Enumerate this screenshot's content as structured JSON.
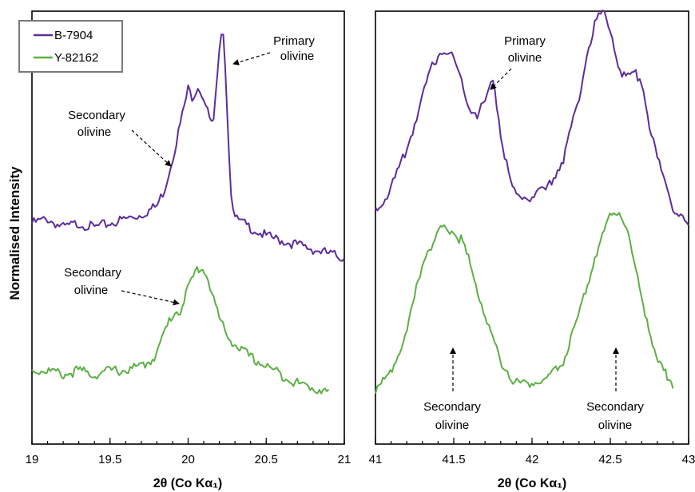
{
  "chart_data": [
    {
      "type": "line",
      "panel": "left",
      "xlabel": "2θ (Co Kα₁)",
      "ylabel": "Normalised Intensity",
      "xlim": [
        19,
        21
      ],
      "xticks": [
        "19",
        "19.5",
        "20",
        "20.5",
        "21"
      ],
      "ylim": [
        0,
        1
      ],
      "legend": {
        "placement": "top-left",
        "entries": [
          "B-7904",
          "Y-82162"
        ]
      },
      "series": [
        {
          "name": "B-7904",
          "color": "#5b2d9c",
          "x": [
            19.0,
            19.1,
            19.2,
            19.3,
            19.4,
            19.5,
            19.6,
            19.7,
            19.8,
            19.85,
            19.9,
            19.95,
            20.0,
            20.03,
            20.06,
            20.1,
            20.13,
            20.16,
            20.2,
            20.22,
            20.24,
            20.27,
            20.3,
            20.4,
            20.5,
            20.6,
            20.7,
            20.8,
            20.9,
            21.0
          ],
          "y": [
            0.51,
            0.52,
            0.5,
            0.51,
            0.5,
            0.51,
            0.52,
            0.53,
            0.55,
            0.59,
            0.66,
            0.74,
            0.82,
            0.8,
            0.83,
            0.8,
            0.76,
            0.73,
            0.9,
            0.99,
            0.86,
            0.6,
            0.52,
            0.5,
            0.48,
            0.47,
            0.46,
            0.45,
            0.44,
            0.43
          ]
        },
        {
          "name": "Y-82162",
          "color": "#5cb044",
          "x": [
            19.0,
            19.1,
            19.2,
            19.3,
            19.4,
            19.5,
            19.6,
            19.7,
            19.75,
            19.8,
            19.85,
            19.9,
            19.95,
            20.0,
            20.05,
            20.08,
            20.12,
            20.16,
            20.2,
            20.25,
            20.3,
            20.4,
            20.5,
            20.6,
            20.7,
            20.8,
            20.9
          ],
          "y": [
            0.17,
            0.17,
            0.16,
            0.17,
            0.16,
            0.17,
            0.17,
            0.18,
            0.19,
            0.21,
            0.26,
            0.3,
            0.31,
            0.36,
            0.4,
            0.41,
            0.39,
            0.34,
            0.29,
            0.25,
            0.23,
            0.2,
            0.18,
            0.16,
            0.14,
            0.13,
            0.12
          ]
        }
      ],
      "annotations": [
        {
          "text": [
            "Primary",
            "olivine"
          ],
          "target": {
            "series": "B-7904",
            "x": 20.22
          }
        },
        {
          "text": [
            "Secondary",
            "olivine"
          ],
          "target": {
            "series": "B-7904",
            "x": 19.93
          }
        },
        {
          "text": [
            "Secondary",
            "olivine"
          ],
          "target": {
            "series": "Y-82162",
            "x": 19.95
          }
        }
      ]
    },
    {
      "type": "line",
      "panel": "right",
      "xlabel": "2θ (Co Kα₁)",
      "xlim": [
        41,
        43
      ],
      "xticks": [
        "41",
        "41.5",
        "42",
        "42.5",
        "43"
      ],
      "ylim": [
        0,
        1
      ],
      "series": [
        {
          "name": "B-7904",
          "color": "#5b2d9c",
          "x": [
            41.0,
            41.1,
            41.2,
            41.3,
            41.35,
            41.4,
            41.45,
            41.5,
            41.55,
            41.6,
            41.65,
            41.7,
            41.75,
            41.8,
            41.85,
            41.9,
            42.0,
            42.1,
            42.2,
            42.3,
            42.35,
            42.4,
            42.45,
            42.5,
            42.55,
            42.6,
            42.65,
            42.7,
            42.75,
            42.8,
            42.9,
            43.0
          ],
          "y": [
            0.54,
            0.59,
            0.68,
            0.8,
            0.86,
            0.9,
            0.91,
            0.89,
            0.84,
            0.78,
            0.76,
            0.79,
            0.85,
            0.72,
            0.62,
            0.57,
            0.57,
            0.59,
            0.66,
            0.8,
            0.9,
            0.97,
            1.0,
            0.96,
            0.88,
            0.84,
            0.86,
            0.84,
            0.74,
            0.66,
            0.55,
            0.5
          ]
        },
        {
          "name": "Y-82162",
          "color": "#5cb044",
          "x": [
            41.0,
            41.1,
            41.2,
            41.3,
            41.33,
            41.36,
            41.4,
            41.45,
            41.5,
            41.55,
            41.6,
            41.7,
            41.8,
            41.9,
            42.0,
            42.1,
            42.2,
            42.3,
            42.4,
            42.45,
            42.5,
            42.55,
            42.6,
            42.7,
            42.8,
            42.9
          ],
          "y": [
            0.12,
            0.17,
            0.26,
            0.42,
            0.45,
            0.45,
            0.49,
            0.5,
            0.49,
            0.47,
            0.42,
            0.3,
            0.19,
            0.14,
            0.14,
            0.15,
            0.19,
            0.3,
            0.43,
            0.48,
            0.53,
            0.54,
            0.5,
            0.34,
            0.19,
            0.14
          ]
        }
      ],
      "annotations": [
        {
          "text": [
            "Primary",
            "olivine"
          ],
          "target": {
            "series": "B-7904",
            "x": 41.75
          }
        },
        {
          "text": [
            "Secondary",
            "olivine"
          ],
          "target": {
            "series": "Y-82162",
            "x": 41.5
          }
        },
        {
          "text": [
            "Secondary",
            "olivine"
          ],
          "target": {
            "series": "Y-82162",
            "x": 42.55
          }
        }
      ]
    }
  ]
}
